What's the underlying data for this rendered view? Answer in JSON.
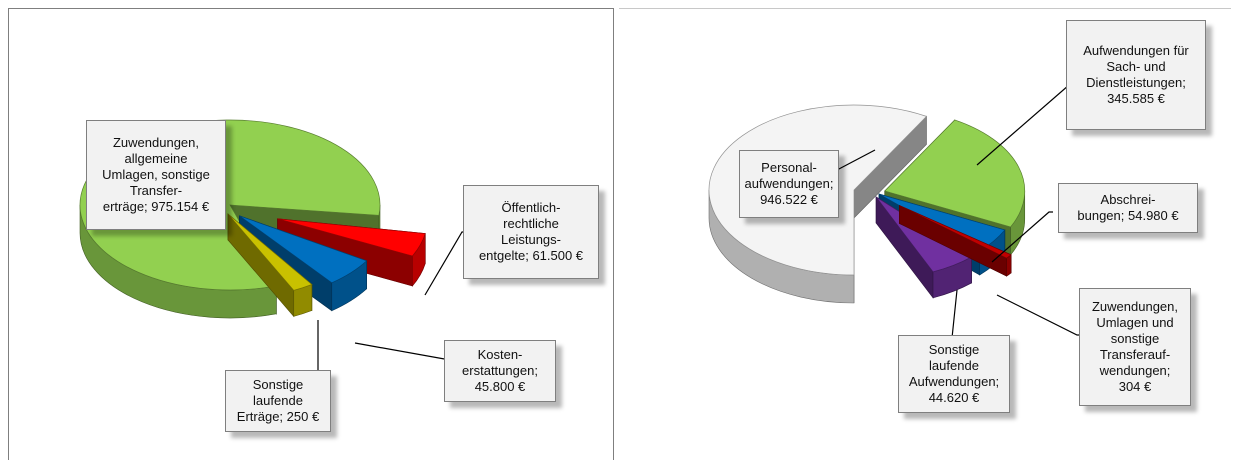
{
  "chart_data": [
    {
      "type": "pie",
      "style": "3d-exploded",
      "slices": [
        {
          "label": "Zuwendungen, allgemeine Umlagen, sonstige Transfer-erträge",
          "value": 975154,
          "display": "Zuwendungen,\nallgemeine\nUmlagen, sonstige\nTransfer-\nerträge; 975.154 €",
          "color": "#92d050"
        },
        {
          "label": "Öffentlich-rechtliche Leistungs-entgelte",
          "value": 61500,
          "display": "Öffentlich-\nrechtliche\nLeistungs-\nentgelte; 61.500 €",
          "color": "#ff0000"
        },
        {
          "label": "Kosten-erstattungen",
          "value": 45800,
          "display": "Kosten-\nerstattungen;\n45.800 €",
          "color": "#0070c0"
        },
        {
          "label": "Sonstige laufende Erträge",
          "value": 250,
          "display": "Sonstige\nlaufende\nErträge; 250 €",
          "color": "#c9c100"
        }
      ]
    },
    {
      "type": "pie",
      "style": "3d-exploded",
      "slices": [
        {
          "label": "Personal-aufwendungen",
          "value": 946522,
          "display": "Personal-\naufwendungen;\n946.522 €",
          "color": "#f4f4f4"
        },
        {
          "label": "Aufwendungen für Sach- und Dienstleistungen",
          "value": 345585,
          "display": "Aufwendungen für\nSach- und\nDienstleistungen;\n345.585 €",
          "color": "#92d050"
        },
        {
          "label": "Abschrei-bungen",
          "value": 54980,
          "display": "Abschrei-\nbungen; 54.980 €",
          "color": "#0070c0"
        },
        {
          "label": "Zuwendungen, Umlagen und sonstige Transferauf-wendungen",
          "value": 304,
          "display": "Zuwendungen,\nUmlagen und\nsonstige\nTransferauf-\nwendungen;\n304 €",
          "color": "#c00000"
        },
        {
          "label": "Sonstige laufende Aufwendungen",
          "value": 44620,
          "display": "Sonstige\nlaufende\nAufwendungen;\n44.620 €",
          "color": "#7030a0"
        }
      ]
    }
  ]
}
